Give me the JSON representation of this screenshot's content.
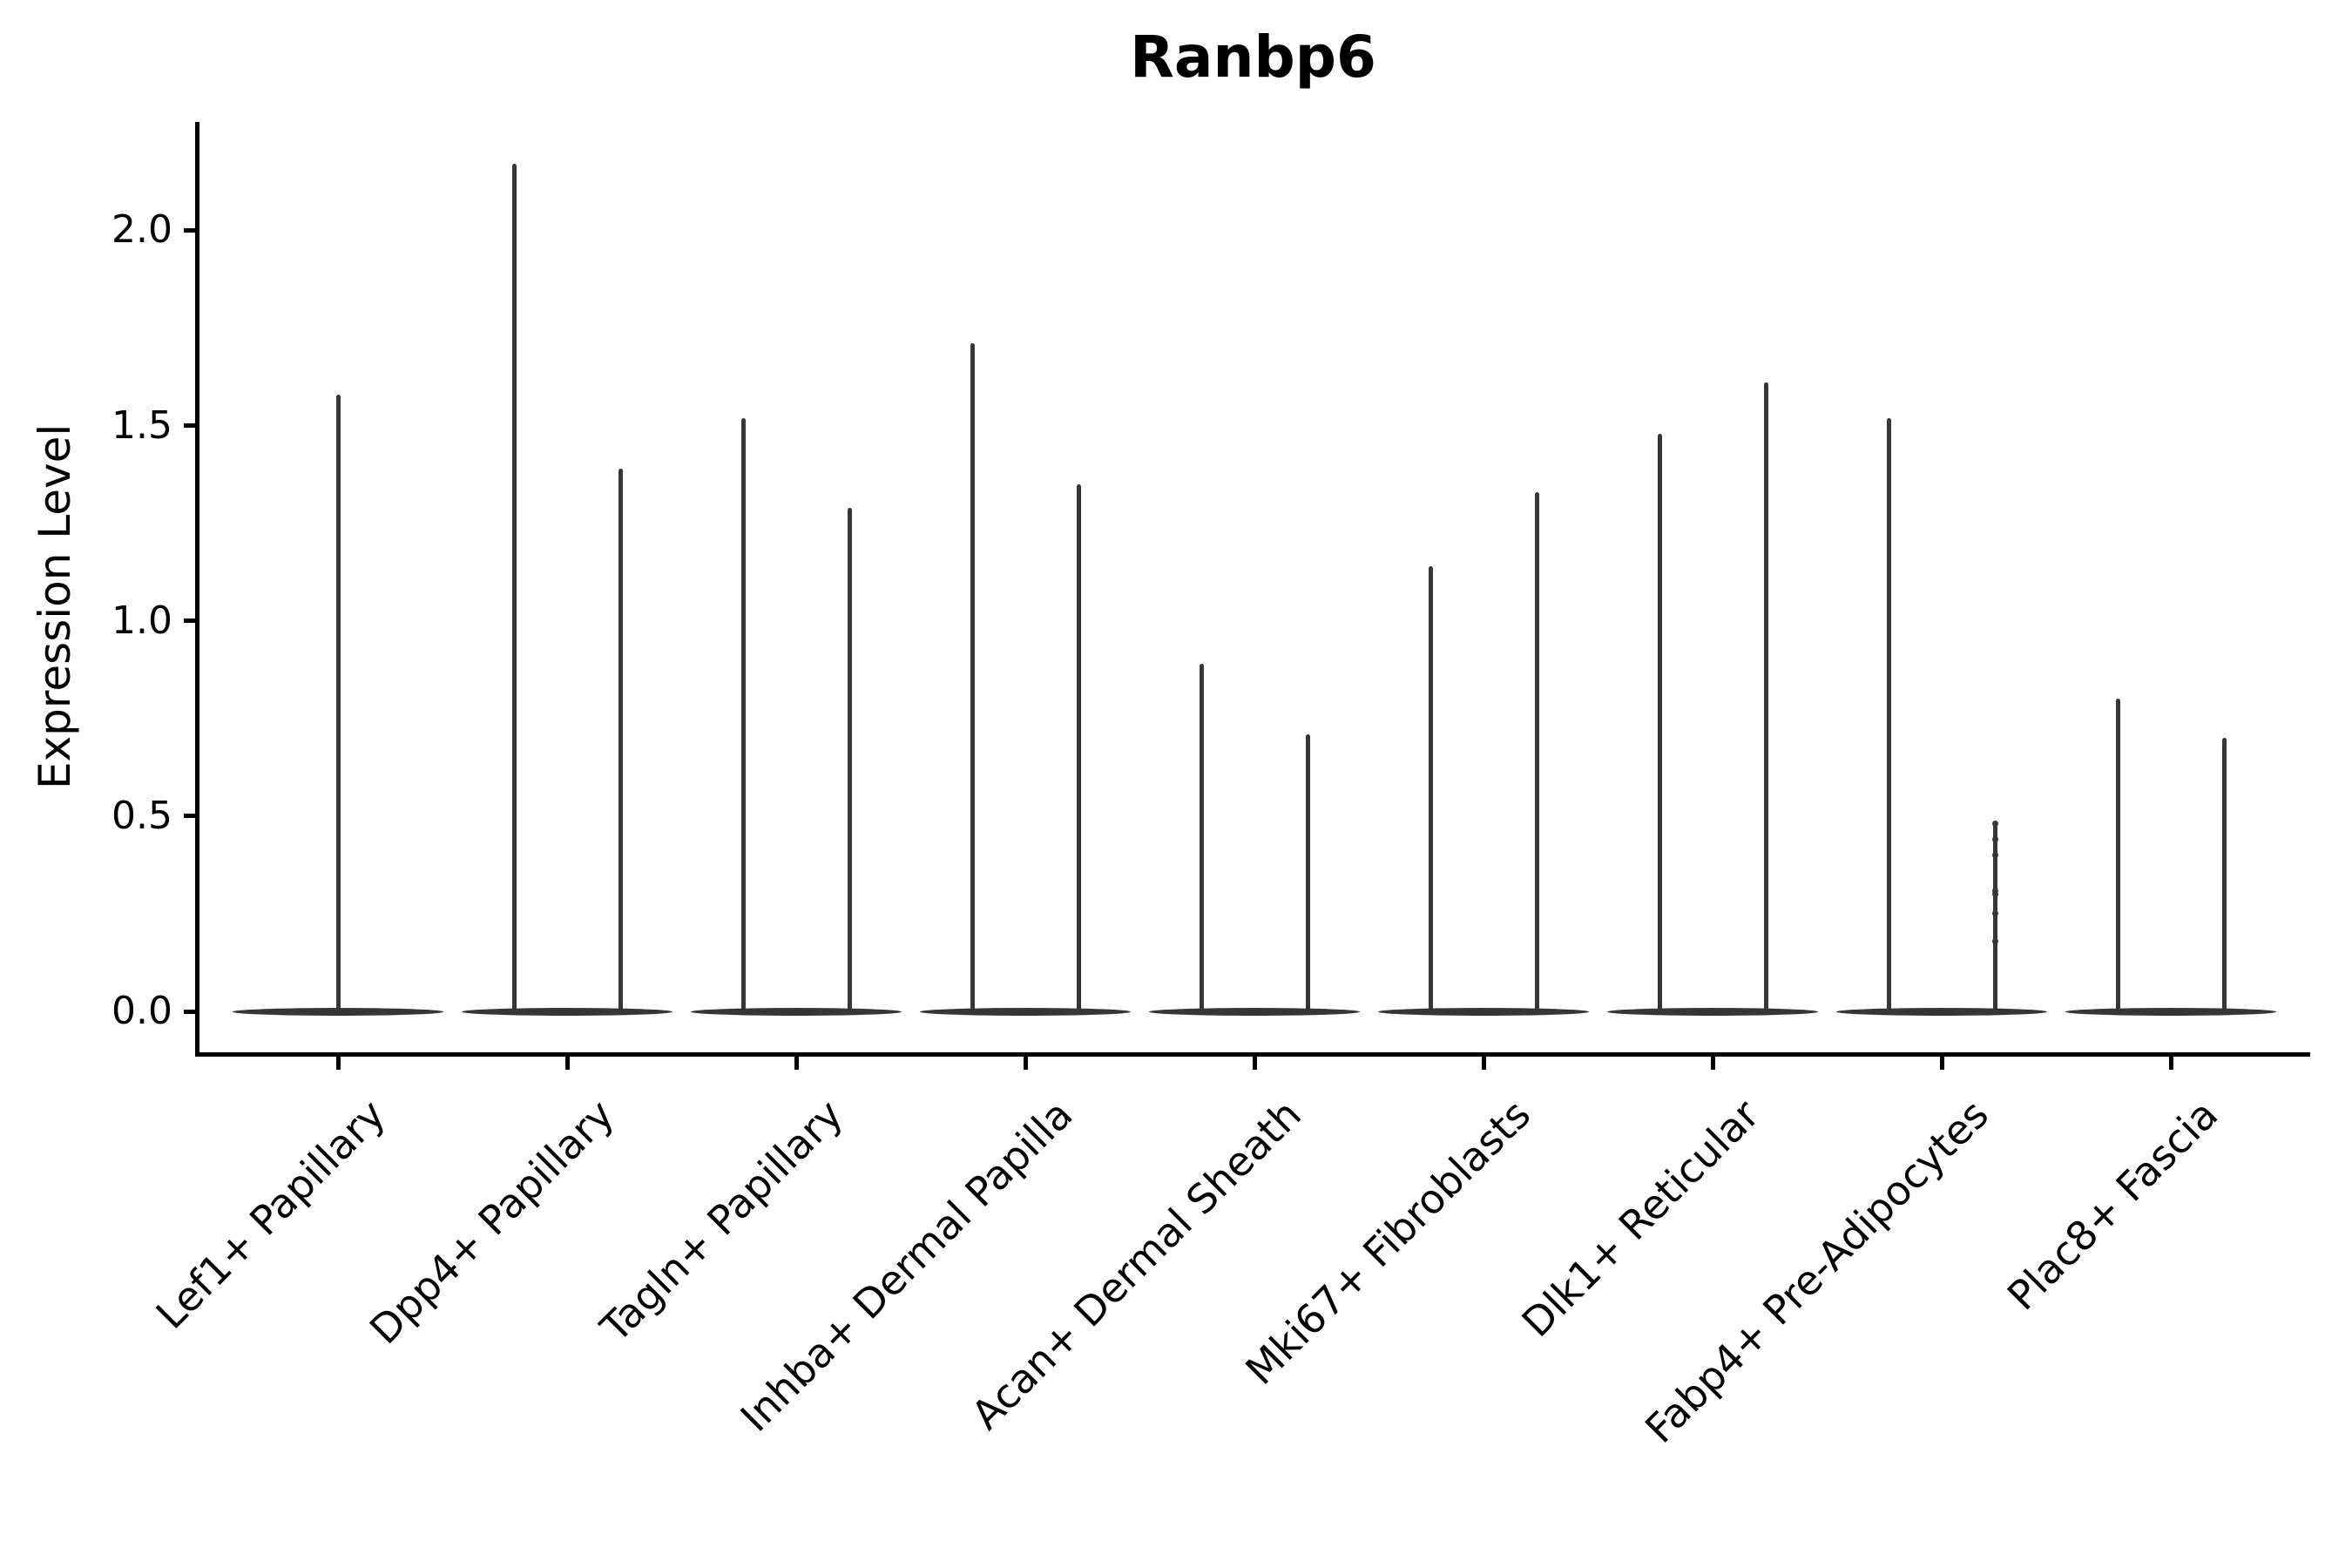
{
  "figure": {
    "title": "Ranbp6"
  },
  "y_axis": {
    "label": "Expression Level",
    "tick_labels": [
      "0.0",
      "0.5",
      "1.0",
      "1.5",
      "2.0"
    ],
    "tick_values": [
      0.0,
      0.5,
      1.0,
      1.5,
      2.0
    ]
  },
  "x_axis": {
    "categories": [
      "Lef1+ Papillary",
      "Dpp4+ Papillary",
      "Tagln+ Papillary",
      "Inhba+ Dermal Papilla",
      "Acan+ Dermal Sheath",
      "Mki67+ Fibroblasts",
      "Dlk1+ Reticular",
      "Fabp4+ Pre-Adipocytes",
      "Plac8+ Fascia"
    ]
  },
  "chart_data": {
    "type": "violin",
    "title": "Ranbp6",
    "xlabel": "",
    "ylabel": "Expression Level",
    "ylim": [
      -0.11,
      2.28
    ],
    "y_ticks": [
      0.0,
      0.5,
      1.0,
      1.5,
      2.0
    ],
    "grid": false,
    "legend": false,
    "description": "Each category shows extremely zero-inflated expression: a wide flat violin body at 0 with one or two thin density spikes rising to the maximum expression value.",
    "categories": [
      "Lef1+ Papillary",
      "Dpp4+ Papillary",
      "Tagln+ Papillary",
      "Inhba+ Dermal Papilla",
      "Acan+ Dermal Sheath",
      "Mki67+ Fibroblasts",
      "Dlk1+ Reticular",
      "Fabp4+ Pre-Adipocytes",
      "Plac8+ Fascia"
    ],
    "violins": [
      {
        "category": "Lef1+ Papillary",
        "spikes": [
          {
            "pos": "center",
            "max": 1.58
          }
        ]
      },
      {
        "category": "Dpp4+ Papillary",
        "spikes": [
          {
            "pos": "left",
            "max": 2.17
          },
          {
            "pos": "right",
            "max": 1.39
          }
        ]
      },
      {
        "category": "Tagln+ Papillary",
        "spikes": [
          {
            "pos": "left",
            "max": 1.52
          },
          {
            "pos": "right",
            "max": 1.29
          }
        ]
      },
      {
        "category": "Inhba+ Dermal Papilla",
        "spikes": [
          {
            "pos": "left",
            "max": 1.71
          },
          {
            "pos": "right",
            "max": 1.35
          }
        ]
      },
      {
        "category": "Acan+ Dermal Sheath",
        "spikes": [
          {
            "pos": "left",
            "max": 0.89
          },
          {
            "pos": "right",
            "max": 0.71
          }
        ]
      },
      {
        "category": "Mki67+ Fibroblasts",
        "spikes": [
          {
            "pos": "left",
            "max": 1.14
          },
          {
            "pos": "right",
            "max": 1.33
          }
        ]
      },
      {
        "category": "Dlk1+ Reticular",
        "spikes": [
          {
            "pos": "left",
            "max": 1.48
          },
          {
            "pos": "right",
            "max": 1.61
          }
        ]
      },
      {
        "category": "Fabp4+ Pre-Adipocytes",
        "spikes": [
          {
            "pos": "left",
            "max": 1.52
          },
          {
            "pos": "right",
            "max": 0.48,
            "points": [
              0.48,
              0.44,
              0.4,
              0.31,
              0.3,
              0.25,
              0.18
            ]
          }
        ]
      },
      {
        "category": "Plac8+ Fascia",
        "spikes": [
          {
            "pos": "left",
            "max": 0.8
          },
          {
            "pos": "right",
            "max": 0.7
          }
        ]
      }
    ],
    "style": {
      "violin_color": "#363636",
      "axis_color": "#000000",
      "background": "#ffffff"
    }
  }
}
